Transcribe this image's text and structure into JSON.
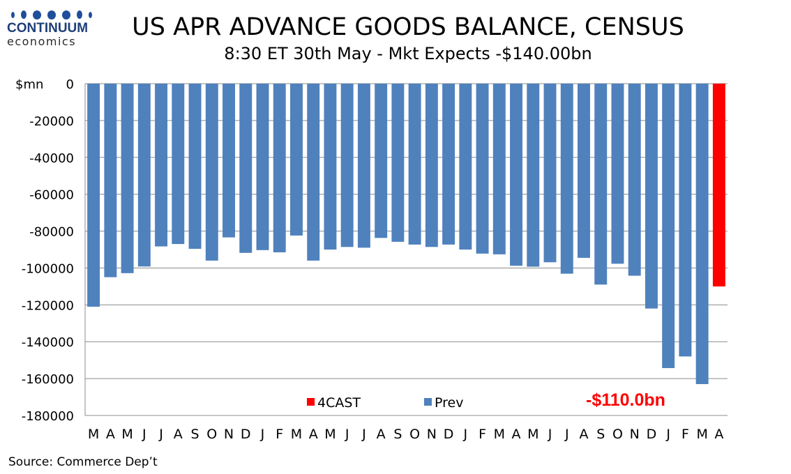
{
  "logo": {
    "name": "CONTINUUM",
    "sub": "economics"
  },
  "header": {
    "title": "US APR ADVANCE GOODS BALANCE, CENSUS",
    "subtitle": "8:30 ET 30th May - Mkt Expects -$140.00bn"
  },
  "footer": {
    "source": "Source: Commerce Dep’t"
  },
  "colors": {
    "prev": "#4f81bd",
    "forecast": "#ff0000",
    "annotation": "#ff0000"
  },
  "chart_data": {
    "type": "bar",
    "ylabel": "$mn",
    "ylim": [
      -180000,
      0
    ],
    "yticks": [
      0,
      -20000,
      -40000,
      -60000,
      -80000,
      -100000,
      -120000,
      -140000,
      -160000,
      -180000
    ],
    "grid": true,
    "legend_position": "bottom-center",
    "categories": [
      "M",
      "A",
      "M",
      "J",
      "J",
      "A",
      "S",
      "O",
      "N",
      "D",
      "J",
      "F",
      "M",
      "A",
      "M",
      "J",
      "J",
      "A",
      "S",
      "O",
      "N",
      "D",
      "J",
      "F",
      "M",
      "A",
      "M",
      "J",
      "J",
      "A",
      "S",
      "O",
      "N",
      "D",
      "J",
      "F",
      "M",
      "A"
    ],
    "series": [
      {
        "name": "Prev",
        "values": [
          -121000,
          -105000,
          -102800,
          -99200,
          -88300,
          -87000,
          -89600,
          -96000,
          -83400,
          -91800,
          -90300,
          -91500,
          -82400,
          -96000,
          -90000,
          -88600,
          -89000,
          -83700,
          -85800,
          -87300,
          -88600,
          -87300,
          -90000,
          -92200,
          -92600,
          -98800,
          -99300,
          -96900,
          -103100,
          -94500,
          -109000,
          -97700,
          -104200,
          -122000,
          -154300,
          -148000,
          -163000,
          null
        ]
      },
      {
        "name": "4CAST",
        "values": [
          null,
          null,
          null,
          null,
          null,
          null,
          null,
          null,
          null,
          null,
          null,
          null,
          null,
          null,
          null,
          null,
          null,
          null,
          null,
          null,
          null,
          null,
          null,
          null,
          null,
          null,
          null,
          null,
          null,
          null,
          null,
          null,
          null,
          null,
          null,
          null,
          null,
          -110000
        ]
      }
    ],
    "annotations": [
      {
        "text": "-$110.0bn",
        "category_index": 37
      }
    ]
  }
}
